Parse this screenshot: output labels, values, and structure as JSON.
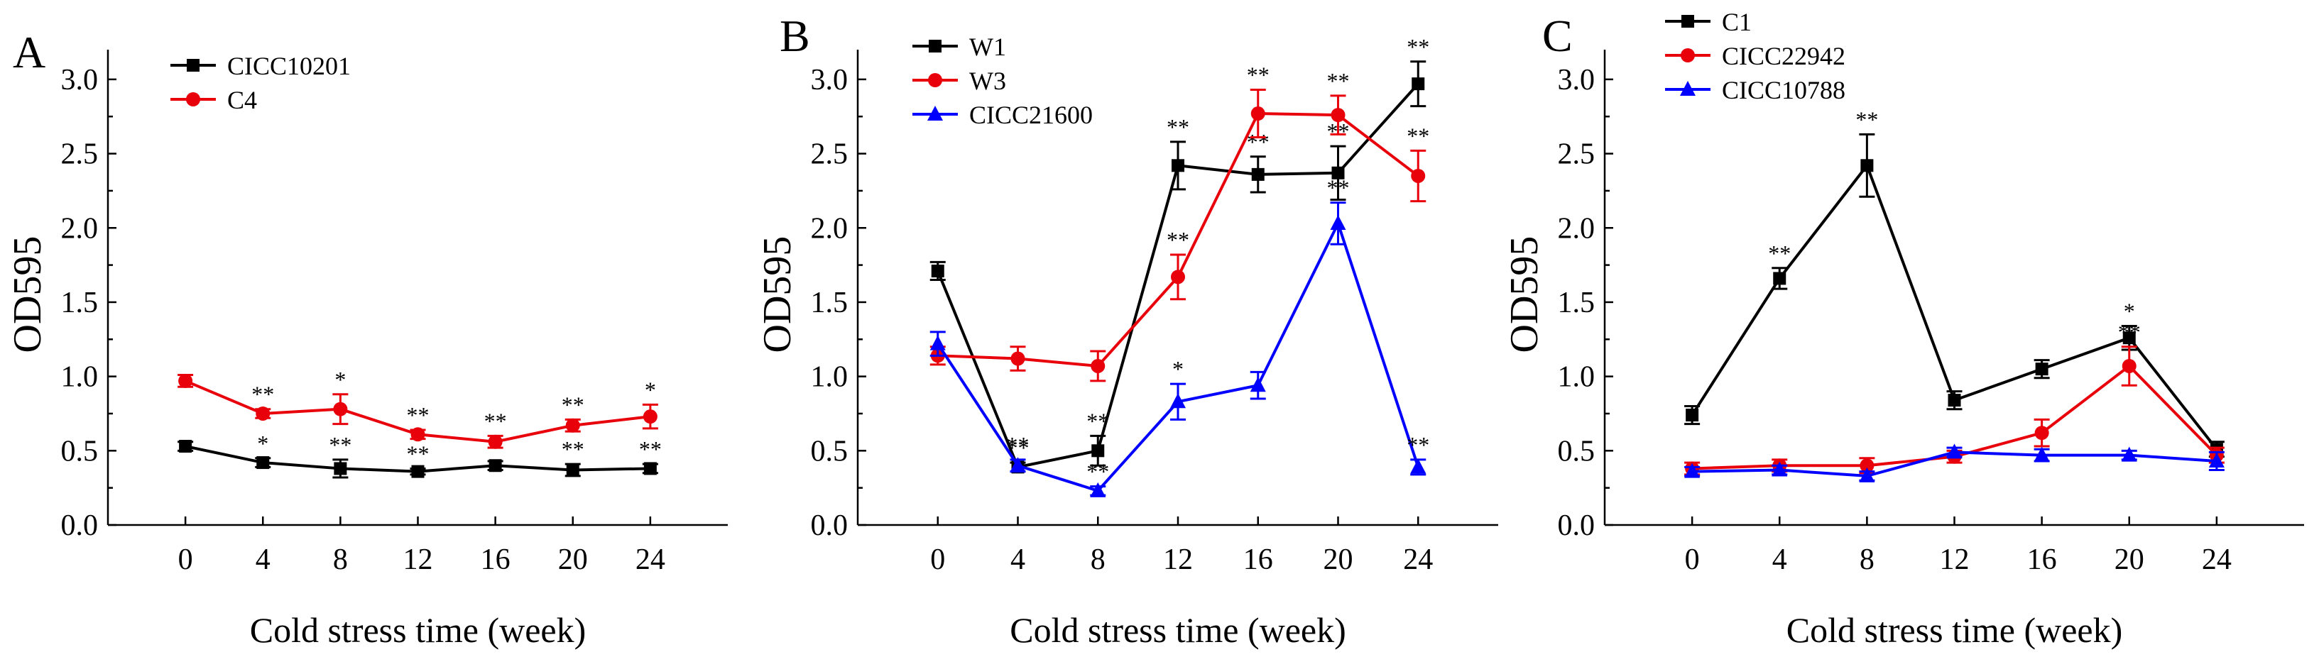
{
  "chart_data": [
    {
      "type": "line",
      "panel": "A",
      "xlabel": "Cold stress time (week)",
      "ylabel": "OD595",
      "x": [
        0,
        4,
        8,
        12,
        16,
        20,
        24
      ],
      "xlim": [
        -4,
        28
      ],
      "ylim": [
        0,
        3.2
      ],
      "yticks": [
        "0.0",
        "0.5",
        "1.0",
        "1.5",
        "2.0",
        "2.5",
        "3.0"
      ],
      "xticks": [
        "0",
        "4",
        "8",
        "12",
        "16",
        "20",
        "24"
      ],
      "legend": "top-left",
      "grid": false,
      "series": [
        {
          "name": "CICC10201",
          "color": "#000000",
          "marker": "square",
          "values": [
            0.53,
            0.42,
            0.38,
            0.36,
            0.4,
            0.37,
            0.38
          ],
          "errors": [
            0.03,
            0.03,
            0.06,
            0.02,
            0.03,
            0.04,
            0.03
          ],
          "stars": [
            "",
            "*",
            "**",
            "**",
            "*",
            "**",
            "**"
          ]
        },
        {
          "name": "C4",
          "color": "#e8000b",
          "marker": "circle",
          "values": [
            0.97,
            0.75,
            0.78,
            0.61,
            0.56,
            0.67,
            0.73
          ],
          "errors": [
            0.04,
            0.03,
            0.1,
            0.03,
            0.04,
            0.04,
            0.08
          ],
          "stars": [
            "",
            "**",
            "*",
            "**",
            "**",
            "**",
            "*"
          ]
        }
      ]
    },
    {
      "type": "line",
      "panel": "B",
      "xlabel": "Cold stress time (week)",
      "ylabel": "OD595",
      "x": [
        0,
        4,
        8,
        12,
        16,
        20,
        24
      ],
      "xlim": [
        -4,
        28
      ],
      "ylim": [
        0,
        3.2
      ],
      "yticks": [
        "0.0",
        "0.5",
        "1.0",
        "1.5",
        "2.0",
        "2.5",
        "3.0"
      ],
      "xticks": [
        "0",
        "4",
        "8",
        "12",
        "16",
        "20",
        "24"
      ],
      "legend": "top-left",
      "grid": false,
      "series": [
        {
          "name": "W1",
          "color": "#000000",
          "marker": "square",
          "values": [
            1.71,
            0.39,
            0.5,
            2.42,
            2.36,
            2.37,
            2.97
          ],
          "errors": [
            0.06,
            0.03,
            0.1,
            0.16,
            0.12,
            0.18,
            0.15
          ],
          "stars": [
            "",
            "**",
            "**",
            "**",
            "**",
            "**",
            "**"
          ]
        },
        {
          "name": "W3",
          "color": "#e8000b",
          "marker": "circle",
          "values": [
            1.14,
            1.12,
            1.07,
            1.67,
            2.77,
            2.76,
            2.35
          ],
          "errors": [
            0.06,
            0.08,
            0.1,
            0.15,
            0.16,
            0.13,
            0.17
          ],
          "stars": [
            "",
            "",
            "",
            "**",
            "**",
            "**",
            "**"
          ]
        },
        {
          "name": "CICC21600",
          "color": "#0000ff",
          "marker": "triangle",
          "values": [
            1.22,
            0.4,
            0.23,
            0.83,
            0.94,
            2.03,
            0.39
          ],
          "errors": [
            0.08,
            0.04,
            0.03,
            0.12,
            0.09,
            0.14,
            0.05
          ],
          "stars": [
            "",
            "**",
            "**",
            "*",
            "",
            "**",
            "**"
          ]
        }
      ]
    },
    {
      "type": "line",
      "panel": "C",
      "xlabel": "Cold stress time (week)",
      "ylabel": "OD595",
      "x": [
        0,
        4,
        8,
        12,
        16,
        20,
        24
      ],
      "xlim": [
        -4,
        28
      ],
      "ylim": [
        0,
        3.2
      ],
      "yticks": [
        "0.0",
        "0.5",
        "1.0",
        "1.5",
        "2.0",
        "2.5",
        "3.0"
      ],
      "xticks": [
        "0",
        "4",
        "8",
        "12",
        "16",
        "20",
        "24"
      ],
      "legend": "top-left",
      "grid": false,
      "series": [
        {
          "name": "C1",
          "color": "#000000",
          "marker": "square",
          "values": [
            0.74,
            1.66,
            2.42,
            0.84,
            1.05,
            1.26,
            0.51
          ],
          "errors": [
            0.06,
            0.07,
            0.21,
            0.06,
            0.06,
            0.08,
            0.05
          ],
          "stars": [
            "",
            "**",
            "**",
            "",
            "",
            "*",
            ""
          ]
        },
        {
          "name": "CICC22942",
          "color": "#e8000b",
          "marker": "circle",
          "values": [
            0.38,
            0.4,
            0.4,
            0.46,
            0.62,
            1.07,
            0.47
          ],
          "errors": [
            0.04,
            0.04,
            0.05,
            0.04,
            0.09,
            0.13,
            0.05
          ],
          "stars": [
            "",
            "",
            "",
            "",
            "",
            "**",
            ""
          ]
        },
        {
          "name": "CICC10788",
          "color": "#0000ff",
          "marker": "triangle",
          "values": [
            0.36,
            0.37,
            0.33,
            0.49,
            0.47,
            0.47,
            0.43
          ],
          "errors": [
            0.03,
            0.03,
            0.03,
            0.03,
            0.04,
            0.03,
            0.06
          ],
          "stars": [
            "",
            "",
            "",
            "",
            "",
            "",
            ""
          ]
        }
      ]
    }
  ]
}
